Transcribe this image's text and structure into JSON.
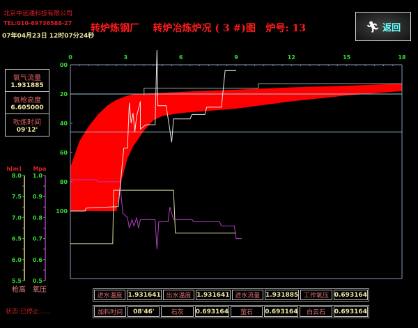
{
  "header": {
    "company": "北京中远通科技有限公司",
    "tel": "TEL:010-69736588-27",
    "datetime": "07年04月23日  12时07分24秒",
    "title": "转炉炼钢厂    转炉冶炼炉况 ( 3 #)图   炉号: 13",
    "return_label": "返回",
    "return_icon": "running-person-icon"
  },
  "info": [
    {
      "label": "氧气流量",
      "value": "1.931885"
    },
    {
      "label": "氧枪高度",
      "value": "6.605000"
    },
    {
      "label": "吹炼时间",
      "value": "09'12'"
    }
  ],
  "scales": {
    "h_unit": "h[m]",
    "mpa_unit": "Mpa",
    "h_ticks": [
      "8.0",
      "7.5",
      "7.0",
      "6.5",
      "6.0",
      "5.5"
    ],
    "mpa_ticks": [
      "1.0",
      "0.9",
      "0.8",
      "0.7",
      "0.6",
      "0.5"
    ],
    "h_label": "枪高",
    "mpa_label": "氧压"
  },
  "table": {
    "row1": [
      [
        "进水温度",
        "1.931641"
      ],
      [
        "出水温度",
        "1.931641"
      ],
      [
        "进水流量",
        "1.931885"
      ],
      [
        "工作氧压",
        "0.693164"
      ]
    ],
    "row2": [
      [
        "加料时间",
        "08'46'"
      ],
      [
        "石灰",
        "0.693164"
      ],
      [
        "萤石",
        "0.693164"
      ],
      [
        "白云石",
        "0.693164"
      ]
    ]
  },
  "status": "状态:已停止......",
  "colors": {
    "band": "#ff0000",
    "tick_label": "#33dd33",
    "axis": "#8899bb",
    "ref_line": "#99ccdd",
    "height_line": "#e0e0a0",
    "pressure_line": "#b040c0",
    "main_line": "#e8e8e8"
  },
  "chart_data": {
    "type": "line",
    "x_ticks": [
      "0",
      "3",
      "6",
      "9",
      "12",
      "15",
      "18"
    ],
    "y_ticks": [
      "00",
      "20",
      "40",
      "60",
      "80",
      "100"
    ],
    "xlim": [
      0,
      18
    ],
    "ylim": [
      0,
      100
    ],
    "y_inverted": true,
    "band": {
      "upper": [
        [
          0,
          70
        ],
        [
          0.5,
          52
        ],
        [
          1,
          42
        ],
        [
          1.5,
          34
        ],
        [
          2,
          28
        ],
        [
          2.5,
          24
        ],
        [
          3,
          21.5
        ],
        [
          3.5,
          20
        ],
        [
          6,
          18.5
        ],
        [
          9,
          17
        ],
        [
          12,
          15.5
        ],
        [
          15,
          14.3
        ],
        [
          18,
          13
        ]
      ],
      "lower": [
        [
          2.5,
          100
        ],
        [
          2.8,
          78
        ],
        [
          3.1,
          64
        ],
        [
          3.4,
          56
        ],
        [
          4,
          45
        ],
        [
          4.5,
          38
        ],
        [
          5,
          35
        ],
        [
          6,
          33
        ],
        [
          9,
          30
        ],
        [
          12,
          25
        ],
        [
          15,
          21
        ],
        [
          18,
          18
        ]
      ]
    },
    "ref_lines": [
      20,
      46
    ],
    "step_line": [
      [
        4,
        21
      ],
      [
        4,
        16
      ],
      [
        10.2,
        16
      ],
      [
        10.2,
        13
      ],
      [
        18,
        13
      ]
    ],
    "main_line": [
      [
        0,
        100
      ],
      [
        0.8,
        100
      ],
      [
        0.85,
        98
      ],
      [
        2.6,
        97
      ],
      [
        2.9,
        57
      ],
      [
        3.1,
        57
      ],
      [
        3.2,
        26
      ],
      [
        3.3,
        40
      ],
      [
        3.4,
        33
      ],
      [
        3.5,
        46
      ],
      [
        3.6,
        35
      ],
      [
        3.8,
        25
      ],
      [
        3.8,
        44
      ],
      [
        4.1,
        41
      ],
      [
        4.6,
        41
      ],
      [
        4.7,
        -10
      ],
      [
        4.75,
        28
      ],
      [
        5.2,
        28
      ],
      [
        5.5,
        53
      ],
      [
        5.6,
        37
      ],
      [
        6.5,
        37
      ],
      [
        6.6,
        34
      ],
      [
        7.3,
        34
      ],
      [
        7.4,
        29
      ],
      [
        8.2,
        29
      ],
      [
        8.4,
        4
      ],
      [
        9,
        4
      ]
    ],
    "height_line": {
      "axis": "h[m]",
      "points": [
        [
          0,
          6.38
        ],
        [
          2.3,
          6.38
        ],
        [
          2.35,
          7.65
        ],
        [
          5.6,
          7.65
        ],
        [
          5.7,
          6.63
        ],
        [
          9,
          6.63
        ]
      ]
    },
    "pressure_line": {
      "axis": "Mpa",
      "points": [
        [
          0,
          0.98
        ],
        [
          1.4,
          0.98
        ],
        [
          1.5,
          0.97
        ],
        [
          2.7,
          0.97
        ],
        [
          2.75,
          0.91
        ],
        [
          2.85,
          0.82
        ],
        [
          3.1,
          0.8
        ],
        [
          3.2,
          0.75
        ],
        [
          3.35,
          0.79
        ],
        [
          3.45,
          0.76
        ],
        [
          3.6,
          0.8
        ],
        [
          3.7,
          0.75
        ],
        [
          3.8,
          0.79
        ],
        [
          4.6,
          0.79
        ],
        [
          4.7,
          0.65
        ],
        [
          4.8,
          0.78
        ],
        [
          5.3,
          0.78
        ],
        [
          5.4,
          0.85
        ],
        [
          5.6,
          0.79
        ],
        [
          6.6,
          0.79
        ],
        [
          6.7,
          0.78
        ],
        [
          8.1,
          0.78
        ],
        [
          8.2,
          0.76
        ],
        [
          8.9,
          0.76
        ],
        [
          9,
          0.7
        ],
        [
          9.3,
          0.7
        ]
      ]
    }
  }
}
